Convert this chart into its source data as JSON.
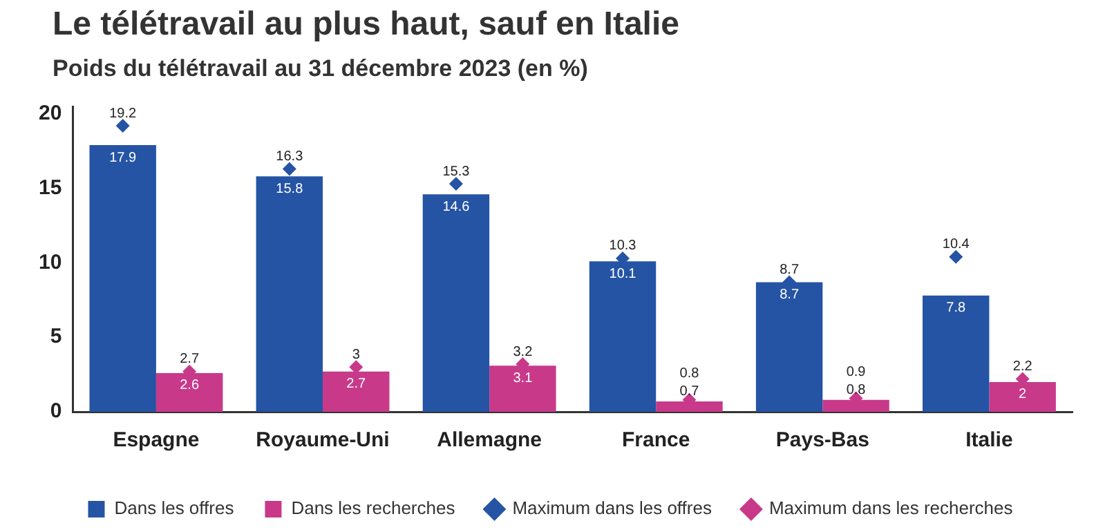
{
  "chart_data": {
    "type": "bar",
    "title": "Le télétravail au plus haut, sauf en Italie",
    "subtitle": "Poids du télétravail au 31 décembre 2023 (en %)",
    "categories": [
      "Espagne",
      "Royaume-Uni",
      "Allemagne",
      "France",
      "Pays-Bas",
      "Italie"
    ],
    "series": [
      {
        "name": "Dans les offres",
        "color": "#2554a5",
        "values": [
          17.9,
          15.8,
          14.6,
          10.1,
          8.7,
          7.8
        ]
      },
      {
        "name": "Dans les recherches",
        "color": "#c8398a",
        "values": [
          2.6,
          2.7,
          3.1,
          0.7,
          0.8,
          2
        ]
      },
      {
        "name": "Maximum dans les offres",
        "type": "scatter",
        "marker": "diamond",
        "color": "#2554a5",
        "x": [
          "Espagne",
          "Royaume-Uni",
          "Allemagne",
          "France",
          "Pays-Bas",
          "Italie"
        ],
        "values": [
          19.2,
          16.3,
          15.3,
          10.3,
          8.7,
          10.4
        ]
      },
      {
        "name": "Maximum dans les recherches",
        "type": "scatter",
        "marker": "diamond",
        "color": "#c8398a",
        "x": [
          "Espagne",
          "Royaume-Uni",
          "Allemagne",
          "France",
          "Pays-Bas",
          "Italie"
        ],
        "values": [
          2.7,
          3,
          3.2,
          0.8,
          0.9,
          2.2
        ]
      }
    ],
    "ylim": [
      0,
      20.5
    ],
    "yticks": [
      0,
      5,
      10,
      15,
      20
    ],
    "grid": false,
    "legend": "bottom",
    "data_labels": true
  }
}
